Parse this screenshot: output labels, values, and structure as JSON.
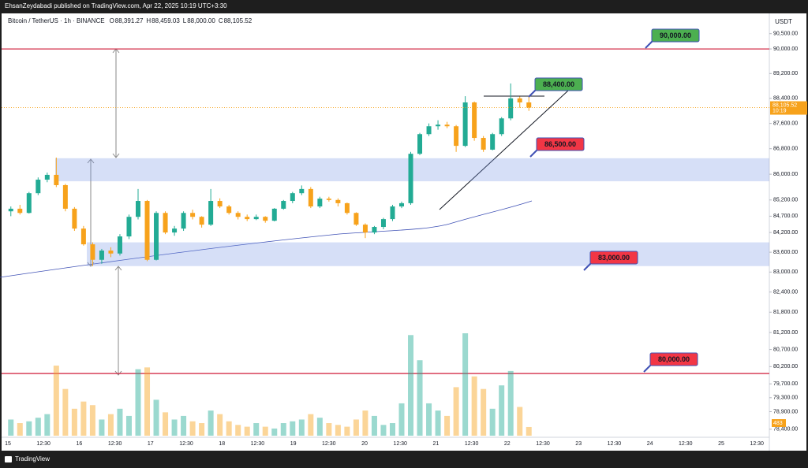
{
  "header": {
    "text": "EhsanZeydabadi published on TradingView.com, Apr 22, 2025 10:19 UTC+3:30"
  },
  "footer": {
    "brand": "TradingView"
  },
  "chart_data": {
    "type": "candlestick",
    "symbol": "Bitcoin / TetherUS · 1h · BINANCE",
    "ohlc": [
      {
        "key": "O",
        "value": "88,391.27"
      },
      {
        "key": "H",
        "value": "88,459.03"
      },
      {
        "key": "L",
        "value": "88,000.00"
      },
      {
        "key": "C",
        "value": "88,105.52"
      }
    ],
    "currency": "USDT",
    "countdown": "10:19",
    "log": true,
    "up_color": "#22ab94",
    "down_color": "#f7a21b",
    "ylim": [
      78170,
      90830
    ],
    "yticks": [
      {
        "value": 90500,
        "label": "90,500.00"
      },
      {
        "value": 90000,
        "label": "90,000.00"
      },
      {
        "value": 89200,
        "label": "89,200.00"
      },
      {
        "value": 88400,
        "label": "88,400.00"
      },
      {
        "value": 87600,
        "label": "87,600.00"
      },
      {
        "value": 86800,
        "label": "86,800.00"
      },
      {
        "value": 86000,
        "label": "86,000.00"
      },
      {
        "value": 85200,
        "label": "85,200.00"
      },
      {
        "value": 84700,
        "label": "84,700.00"
      },
      {
        "value": 84200,
        "label": "84,200.00"
      },
      {
        "value": 83600,
        "label": "83,600.00"
      },
      {
        "value": 83000,
        "label": "83,000.00"
      },
      {
        "value": 82400,
        "label": "82,400.00"
      },
      {
        "value": 81800,
        "label": "81,800.00"
      },
      {
        "value": 81200,
        "label": "81,200.00"
      },
      {
        "value": 80700,
        "label": "80,700.00"
      },
      {
        "value": 80200,
        "label": "80,200.00"
      },
      {
        "value": 79700,
        "label": "79,700.00"
      },
      {
        "value": 79300,
        "label": "79,300.00"
      },
      {
        "value": 78900,
        "label": "78,900.00"
      },
      {
        "value": 78400,
        "label": "78,400.00"
      }
    ],
    "x_labels": [
      "15",
      "12:30",
      "16",
      "12:30",
      "17",
      "12:30",
      "18",
      "12:30",
      "19",
      "12:30",
      "20",
      "12:30",
      "21",
      "12:30",
      "22",
      "12:30",
      "23",
      "12:30",
      "24",
      "12:30",
      "25",
      "12:30"
    ],
    "candles": [
      [
        84850,
        85000,
        84700,
        84930
      ],
      [
        84930,
        85050,
        84750,
        84800
      ],
      [
        84800,
        85450,
        84780,
        85410
      ],
      [
        85410,
        85900,
        85350,
        85830
      ],
      [
        85830,
        86050,
        85750,
        85980
      ],
      [
        85980,
        86520,
        85600,
        85660
      ],
      [
        85660,
        85700,
        84850,
        84930
      ],
      [
        84930,
        84980,
        84250,
        84320
      ],
      [
        84320,
        84400,
        83800,
        83840
      ],
      [
        83840,
        83900,
        83180,
        83370
      ],
      [
        83370,
        83700,
        83250,
        83650
      ],
      [
        83650,
        83750,
        83450,
        83560
      ],
      [
        83560,
        84150,
        83500,
        84080
      ],
      [
        84080,
        84750,
        84000,
        84680
      ],
      [
        84680,
        85540,
        84600,
        85170
      ],
      [
        85170,
        85200,
        83330,
        83370
      ],
      [
        83370,
        84850,
        83350,
        84800
      ],
      [
        84800,
        84850,
        84150,
        84200
      ],
      [
        84200,
        84400,
        84100,
        84320
      ],
      [
        84320,
        84850,
        84250,
        84800
      ],
      [
        84800,
        84900,
        84600,
        84680
      ],
      [
        84680,
        84700,
        84350,
        84440
      ],
      [
        84440,
        85540,
        84400,
        85170
      ],
      [
        85170,
        85250,
        84950,
        85000
      ],
      [
        85000,
        85050,
        84750,
        84800
      ],
      [
        84800,
        84850,
        84600,
        84680
      ],
      [
        84680,
        84750,
        84550,
        84610
      ],
      [
        84610,
        84750,
        84580,
        84680
      ],
      [
        84680,
        84700,
        84500,
        84560
      ],
      [
        84560,
        84950,
        84540,
        84930
      ],
      [
        84930,
        85200,
        84900,
        85170
      ],
      [
        85170,
        85450,
        85100,
        85410
      ],
      [
        85410,
        85650,
        85350,
        85540
      ],
      [
        85540,
        85600,
        84950,
        85000
      ],
      [
        85000,
        85300,
        84950,
        85240
      ],
      [
        85240,
        85300,
        85150,
        85200
      ],
      [
        85200,
        85250,
        85000,
        85100
      ],
      [
        85100,
        85120,
        84750,
        84800
      ],
      [
        84800,
        84820,
        84400,
        84440
      ],
      [
        84440,
        84480,
        84030,
        84200
      ],
      [
        84200,
        84400,
        84150,
        84370
      ],
      [
        84370,
        84650,
        84300,
        84610
      ],
      [
        84610,
        85050,
        84550,
        85000
      ],
      [
        85000,
        85150,
        84950,
        85100
      ],
      [
        85100,
        86700,
        85050,
        86640
      ],
      [
        86640,
        87300,
        86600,
        87260
      ],
      [
        87260,
        87600,
        87200,
        87510
      ],
      [
        87510,
        87700,
        87400,
        87560
      ],
      [
        87560,
        87650,
        87450,
        87510
      ],
      [
        87510,
        87550,
        86700,
        86890
      ],
      [
        86890,
        88470,
        86850,
        88270
      ],
      [
        88270,
        88300,
        87050,
        87140
      ],
      [
        87140,
        87200,
        86700,
        86770
      ],
      [
        86770,
        87300,
        86750,
        87260
      ],
      [
        87260,
        87800,
        87200,
        87760
      ],
      [
        87760,
        88880,
        87700,
        88400
      ],
      [
        88400,
        88460,
        88100,
        88270
      ],
      [
        88270,
        88460,
        88000,
        88105
      ]
    ],
    "volumes": [
      900,
      700,
      800,
      1000,
      1200,
      3900,
      2600,
      1500,
      1900,
      1700,
      900,
      1200,
      1500,
      1100,
      3700,
      3800,
      2000,
      1300,
      900,
      1100,
      800,
      700,
      1400,
      1200,
      800,
      600,
      500,
      700,
      500,
      400,
      700,
      800,
      900,
      1200,
      1000,
      700,
      600,
      500,
      900,
      1400,
      1100,
      600,
      700,
      1800,
      5600,
      4200,
      1800,
      1400,
      1100,
      2700,
      5700,
      3300,
      2600,
      1500,
      2800,
      3600,
      1600,
      483
    ],
    "levels": [
      90000,
      80000
    ],
    "zones": [
      {
        "top": 86500,
        "bottom": 85780
      },
      {
        "top": 83900,
        "bottom": 83180
      }
    ],
    "annotations": [
      {
        "text": "90,000.00",
        "color": "#4caf50"
      },
      {
        "text": "88,400.00",
        "color": "#4caf50"
      },
      {
        "text": "86,500.00",
        "color": "#f23645"
      },
      {
        "text": "83,000.00",
        "color": "#f23645"
      },
      {
        "text": "80,000.00",
        "color": "#f23645"
      }
    ]
  }
}
